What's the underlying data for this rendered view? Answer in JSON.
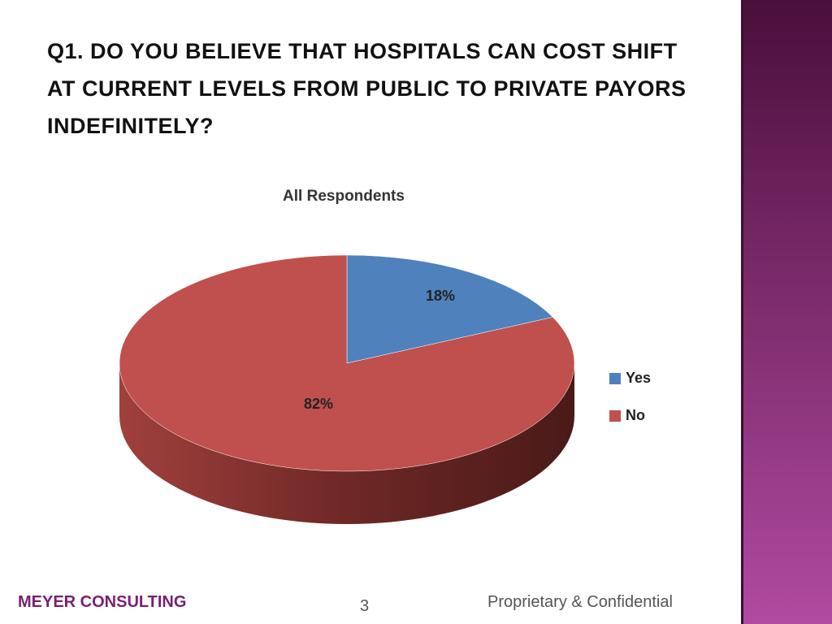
{
  "slide": {
    "title": "Q1.  DO YOU BELIEVE THAT HOSPITALS CAN COST SHIFT AT CURRENT LEVELS FROM PUBLIC TO PRIVATE PAYORS INDEFINITELY?",
    "company": "MEYER CONSULTING",
    "page_number": 3,
    "notice": "Proprietary & Confidential"
  },
  "chart_data": {
    "type": "pie",
    "title": "All Respondents",
    "categories": [
      "Yes",
      "No"
    ],
    "values": [
      18,
      82
    ],
    "value_labels": [
      "18%",
      "82%"
    ],
    "colors": [
      "#4f81bd",
      "#c0504d"
    ],
    "legend": "right"
  }
}
